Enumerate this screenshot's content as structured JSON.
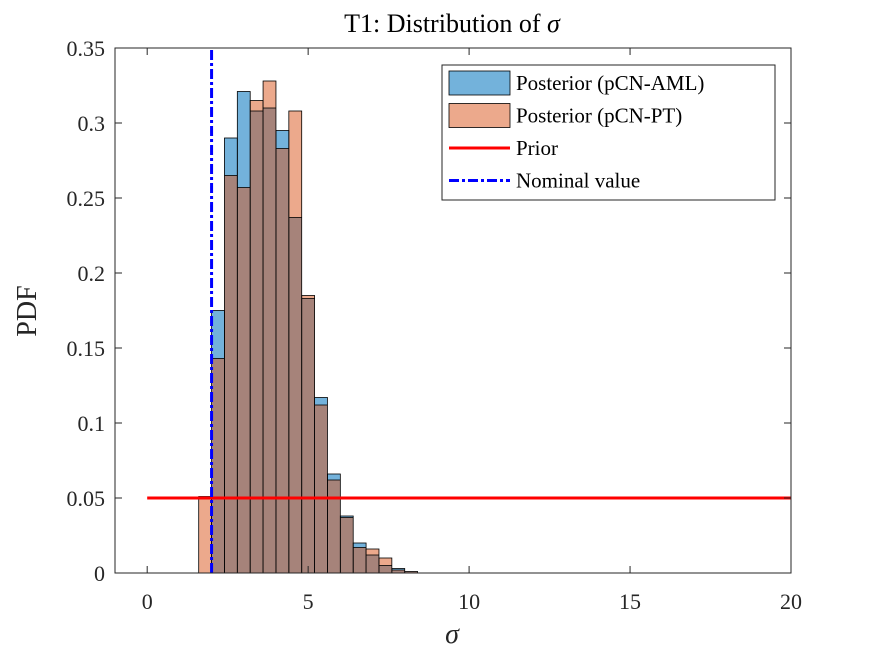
{
  "chart_data": {
    "type": "bar",
    "title": "T1: Distribution of σ",
    "xlabel": "σ",
    "ylabel": "PDF",
    "xlim": [
      -1,
      20
    ],
    "ylim": [
      0,
      0.35
    ],
    "xticks": [
      "0",
      "5",
      "10",
      "15",
      "20"
    ],
    "yticks": [
      "0",
      "0.05",
      "0.1",
      "0.15",
      "0.2",
      "0.25",
      "0.3",
      "0.35"
    ],
    "bin_width": 0.4,
    "bin_starts": [
      1.6,
      2.0,
      2.4,
      2.8,
      3.2,
      3.6,
      4.0,
      4.4,
      4.8,
      5.2,
      5.6,
      6.0,
      6.4,
      6.8,
      7.2,
      7.6,
      8.0,
      8.4
    ],
    "series": [
      {
        "name": "Posterior (pCN-AML)",
        "color": "#0072BD",
        "values": [
          0.0,
          0.175,
          0.29,
          0.321,
          0.308,
          0.31,
          0.295,
          0.237,
          0.183,
          0.117,
          0.066,
          0.038,
          0.02,
          0.012,
          0.005,
          0.003,
          0.001,
          0.0
        ]
      },
      {
        "name": "Posterior (pCN-PT)",
        "color": "#D95319",
        "values": [
          0.051,
          0.143,
          0.265,
          0.257,
          0.315,
          0.328,
          0.283,
          0.308,
          0.185,
          0.112,
          0.062,
          0.037,
          0.017,
          0.016,
          0.01,
          0.002,
          0.001,
          0.0
        ]
      },
      {
        "name": "Prior",
        "color": "#FF0000",
        "x": [
          0,
          20
        ],
        "values": [
          0.05,
          0.05
        ]
      },
      {
        "name": "Nominal value",
        "color": "#0000FF",
        "x": [
          2,
          2
        ],
        "values": [
          0,
          0.35
        ]
      }
    ],
    "legend_position": "top-right",
    "grid": false
  }
}
